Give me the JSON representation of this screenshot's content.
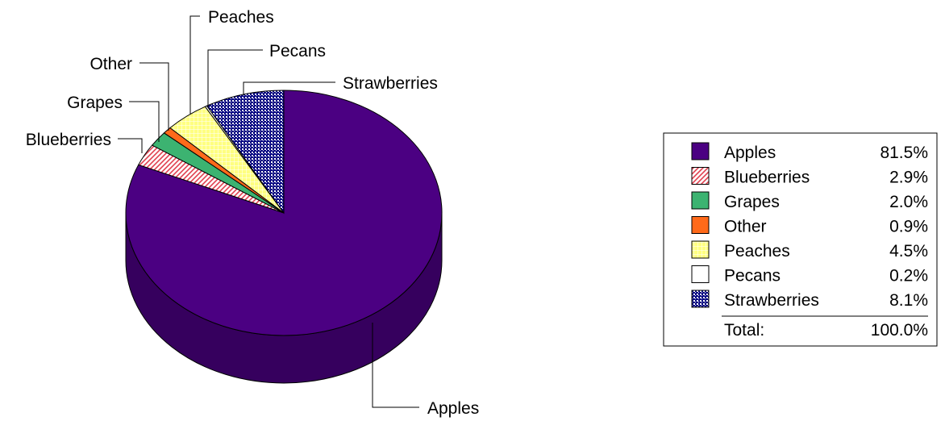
{
  "chart_data": {
    "type": "pie",
    "title": "",
    "slices": [
      {
        "name": "Apples",
        "value": 81.5,
        "label": "81.5%",
        "color": "#4b0082",
        "pattern": "solid"
      },
      {
        "name": "Blueberries",
        "value": 2.9,
        "label": "2.9%",
        "color": "#e06070",
        "pattern": "diagonal-red"
      },
      {
        "name": "Grapes",
        "value": 2.0,
        "label": "2.0%",
        "color": "#3cb371",
        "pattern": "solid"
      },
      {
        "name": "Other",
        "value": 0.9,
        "label": "0.9%",
        "color": "#ff6a1a",
        "pattern": "solid"
      },
      {
        "name": "Peaches",
        "value": 4.5,
        "label": "4.5%",
        "color": "#ffff80",
        "pattern": "yellow-grid"
      },
      {
        "name": "Pecans",
        "value": 0.2,
        "label": "0.2%",
        "color": "#ffffff",
        "pattern": "solid"
      },
      {
        "name": "Strawberries",
        "value": 8.1,
        "label": "8.1%",
        "color": "#000080",
        "pattern": "blue-check"
      }
    ],
    "total_label": "Total:",
    "total_value": "100.0%",
    "legend_position": "right",
    "start": "12 o'clock, clockwise",
    "style": "3d"
  }
}
